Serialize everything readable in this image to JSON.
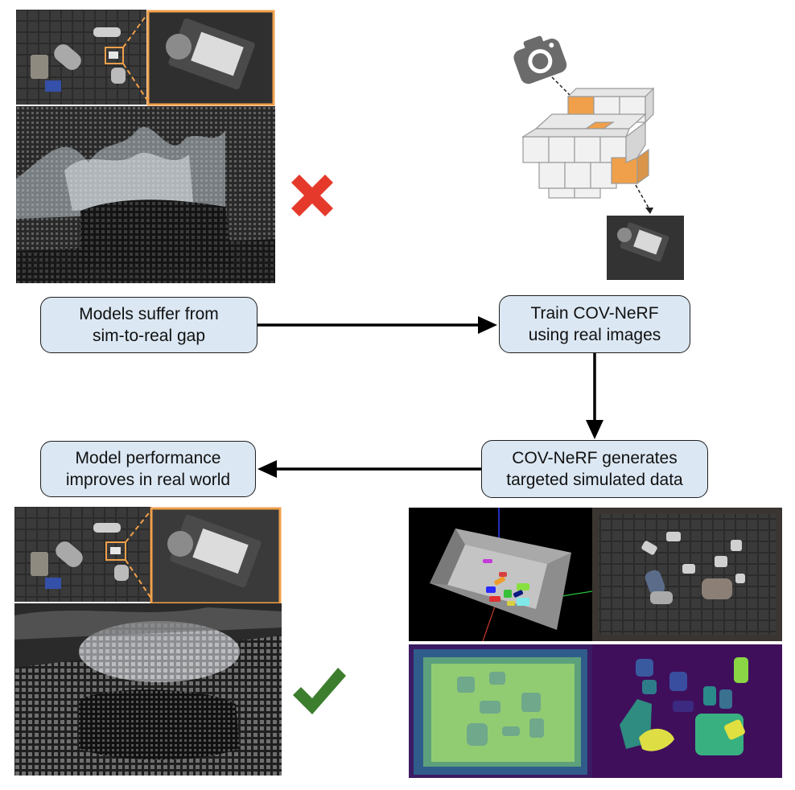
{
  "boxes": {
    "sim_gap": {
      "line1": "Models suffer from",
      "line2": "sim-to-real gap"
    },
    "train": {
      "line1": "Train COV-NeRF",
      "line2": "using real images"
    },
    "generate": {
      "line1": "COV-NeRF generates",
      "line2": "targeted simulated data"
    },
    "improve": {
      "line1": "Model performance",
      "line2": "improves in real world"
    }
  },
  "icons": {
    "fail": "cross-mark-icon",
    "success": "check-mark-icon",
    "camera": "camera-icon"
  },
  "colors": {
    "box_fill": "#dbe7f3",
    "highlight_orange": "#f0a04b",
    "cross_red": "#e53a2b",
    "check_green": "#3c7e2e",
    "viridis_dark": "#3b1b63",
    "viridis_green": "#8ccf6b"
  }
}
